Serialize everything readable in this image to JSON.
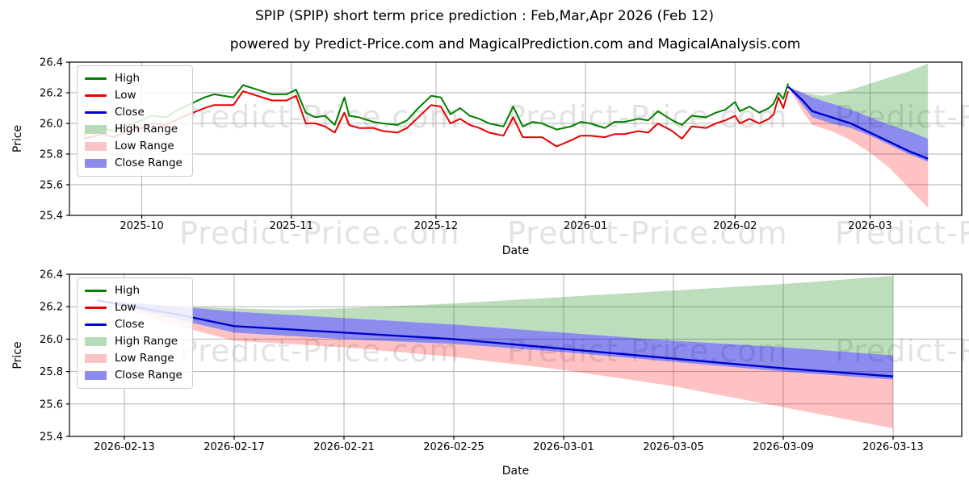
{
  "header": {
    "title": "SPIP (SPIP) short term price prediction : Feb,Mar,Apr 2026 (Feb 12)",
    "subtitle": "powered by Predict-Price.com and MagicalPrediction.com and MagicalAnalysis.com"
  },
  "watermark": {
    "text": "Predict-Price.com"
  },
  "colors": {
    "high": "#008000",
    "low": "#e80000",
    "close": "#0000cd",
    "high_range": "rgba(0,128,0,0.26)",
    "low_range": "rgba(255,0,0,0.24)",
    "close_range": "rgba(0,0,220,0.45)",
    "grid": "#b2b2b2",
    "watermark_gray": "#e2e2e2"
  },
  "legend": [
    {
      "label": "High",
      "type": "line",
      "color": "#008000"
    },
    {
      "label": "Low",
      "type": "line",
      "color": "#e80000"
    },
    {
      "label": "Close",
      "type": "line",
      "color": "#0000cd"
    },
    {
      "label": "High Range",
      "type": "patch",
      "color": "#b7dab7"
    },
    {
      "label": "Low Range",
      "type": "patch",
      "color": "#fbc4c4"
    },
    {
      "label": "Close Range",
      "type": "patch",
      "color": "#8c8cef"
    }
  ],
  "chart_data": [
    {
      "name": "price-history-and-forecast",
      "type": "line",
      "xlabel": "Date",
      "ylabel": "Price",
      "ylim": [
        25.4,
        26.4
      ],
      "yticks": [
        25.4,
        25.6,
        25.8,
        26.0,
        26.2,
        26.4
      ],
      "xlim": [
        "2025-09-16",
        "2026-03-20"
      ],
      "xticks": [
        {
          "date": "2025-10-01",
          "label": "2025-10"
        },
        {
          "date": "2025-11-01",
          "label": "2025-11"
        },
        {
          "date": "2025-12-01",
          "label": "2025-12"
        },
        {
          "date": "2026-01-01",
          "label": "2026-01"
        },
        {
          "date": "2026-02-01",
          "label": "2026-02"
        },
        {
          "date": "2026-03-01",
          "label": "2026-03"
        }
      ],
      "grid": true,
      "legend_position": "upper left",
      "history": {
        "columns": [
          "date",
          "high",
          "low"
        ],
        "rows": [
          [
            "2025-09-19",
            25.93,
            25.9
          ],
          [
            "2025-09-23",
            25.97,
            25.93
          ],
          [
            "2025-09-25",
            25.95,
            25.91
          ],
          [
            "2025-09-29",
            26.0,
            25.96
          ],
          [
            "2025-10-01",
            26.02,
            25.97
          ],
          [
            "2025-10-03",
            26.05,
            26.0
          ],
          [
            "2025-10-06",
            26.04,
            25.99
          ],
          [
            "2025-10-08",
            26.08,
            26.02
          ],
          [
            "2025-10-10",
            26.11,
            26.05
          ],
          [
            "2025-10-14",
            26.17,
            26.1
          ],
          [
            "2025-10-16",
            26.19,
            26.12
          ],
          [
            "2025-10-20",
            26.17,
            26.12
          ],
          [
            "2025-10-22",
            26.25,
            26.21
          ],
          [
            "2025-10-24",
            26.23,
            26.19
          ],
          [
            "2025-10-28",
            26.19,
            26.15
          ],
          [
            "2025-10-31",
            26.19,
            26.15
          ],
          [
            "2025-11-02",
            26.22,
            26.18
          ],
          [
            "2025-11-04",
            26.07,
            26.0
          ],
          [
            "2025-11-06",
            26.04,
            26.0
          ],
          [
            "2025-11-08",
            26.05,
            25.98
          ],
          [
            "2025-11-10",
            25.99,
            25.94
          ],
          [
            "2025-11-12",
            26.17,
            26.07
          ],
          [
            "2025-11-13",
            26.05,
            25.99
          ],
          [
            "2025-11-15",
            26.04,
            25.97
          ],
          [
            "2025-11-18",
            26.01,
            25.97
          ],
          [
            "2025-11-20",
            26.0,
            25.95
          ],
          [
            "2025-11-23",
            25.99,
            25.94
          ],
          [
            "2025-11-25",
            26.02,
            25.97
          ],
          [
            "2025-11-27",
            26.09,
            26.03
          ],
          [
            "2025-11-30",
            26.18,
            26.12
          ],
          [
            "2025-12-02",
            26.17,
            26.11
          ],
          [
            "2025-12-04",
            26.06,
            26.0
          ],
          [
            "2025-12-06",
            26.1,
            26.03
          ],
          [
            "2025-12-08",
            26.05,
            25.99
          ],
          [
            "2025-12-10",
            26.03,
            25.97
          ],
          [
            "2025-12-12",
            26.0,
            25.94
          ],
          [
            "2025-12-15",
            25.98,
            25.92
          ],
          [
            "2025-12-17",
            26.11,
            26.04
          ],
          [
            "2025-12-19",
            25.98,
            25.91
          ],
          [
            "2025-12-21",
            26.01,
            25.91
          ],
          [
            "2025-12-23",
            26.0,
            25.91
          ],
          [
            "2025-12-26",
            25.96,
            25.85
          ],
          [
            "2025-12-29",
            25.98,
            25.89
          ],
          [
            "2025-12-31",
            26.01,
            25.92
          ],
          [
            "2026-01-02",
            26.0,
            25.92
          ],
          [
            "2026-01-05",
            25.97,
            25.91
          ],
          [
            "2026-01-07",
            26.01,
            25.93
          ],
          [
            "2026-01-09",
            26.01,
            25.93
          ],
          [
            "2026-01-12",
            26.03,
            25.95
          ],
          [
            "2026-01-14",
            26.02,
            25.94
          ],
          [
            "2026-01-16",
            26.08,
            26.0
          ],
          [
            "2026-01-19",
            26.02,
            25.95
          ],
          [
            "2026-01-21",
            25.99,
            25.9
          ],
          [
            "2026-01-23",
            26.05,
            25.98
          ],
          [
            "2026-01-26",
            26.04,
            25.97
          ],
          [
            "2026-01-28",
            26.07,
            26.0
          ],
          [
            "2026-01-30",
            26.09,
            26.02
          ],
          [
            "2026-02-01",
            26.14,
            26.05
          ],
          [
            "2026-02-02",
            26.08,
            26.0
          ],
          [
            "2026-02-04",
            26.11,
            26.03
          ],
          [
            "2026-02-06",
            26.07,
            26.0
          ],
          [
            "2026-02-08",
            26.1,
            26.03
          ],
          [
            "2026-02-09",
            26.13,
            26.06
          ],
          [
            "2026-02-10",
            26.2,
            26.17
          ],
          [
            "2026-02-11",
            26.16,
            26.1
          ],
          [
            "2026-02-12",
            26.26,
            26.21
          ]
        ]
      },
      "forecast": {
        "columns": [
          "date",
          "close",
          "close_upper",
          "close_lower",
          "high_upper",
          "low_lower"
        ],
        "rows": [
          [
            "2026-02-12",
            26.24,
            26.24,
            26.24,
            26.24,
            26.24
          ],
          [
            "2026-02-15",
            26.15,
            26.2,
            26.12,
            26.2,
            26.08
          ],
          [
            "2026-02-17",
            26.08,
            26.17,
            26.04,
            26.19,
            25.99
          ],
          [
            "2026-02-19",
            26.06,
            26.15,
            26.02,
            26.18,
            25.97
          ],
          [
            "2026-02-21",
            26.04,
            26.13,
            26.0,
            26.19,
            25.95
          ],
          [
            "2026-02-25",
            26.0,
            26.09,
            25.97,
            26.22,
            25.89
          ],
          [
            "2026-03-01",
            25.94,
            26.04,
            25.92,
            26.26,
            25.81
          ],
          [
            "2026-03-05",
            25.88,
            25.99,
            25.86,
            26.3,
            25.71
          ],
          [
            "2026-03-09",
            25.82,
            25.95,
            25.8,
            26.34,
            25.58
          ],
          [
            "2026-03-13",
            25.77,
            25.9,
            25.75,
            26.39,
            25.45
          ]
        ]
      }
    },
    {
      "name": "forecast-detail",
      "type": "line",
      "xlabel": "Date",
      "ylabel": "Price",
      "ylim": [
        25.4,
        26.4
      ],
      "yticks": [
        25.4,
        25.6,
        25.8,
        26.0,
        26.2,
        26.4
      ],
      "xlim": [
        "2026-02-11",
        "2026-03-15T12:00"
      ],
      "xticks": [
        {
          "date": "2026-02-13",
          "label": "2026-02-13"
        },
        {
          "date": "2026-02-17",
          "label": "2026-02-17"
        },
        {
          "date": "2026-02-21",
          "label": "2026-02-21"
        },
        {
          "date": "2026-02-25",
          "label": "2026-02-25"
        },
        {
          "date": "2026-03-01",
          "label": "2026-03-01"
        },
        {
          "date": "2026-03-05",
          "label": "2026-03-05"
        },
        {
          "date": "2026-03-09",
          "label": "2026-03-09"
        },
        {
          "date": "2026-03-13",
          "label": "2026-03-13"
        }
      ],
      "grid": true,
      "legend_position": "upper left",
      "forecast": {
        "columns": [
          "date",
          "close",
          "close_upper",
          "close_lower",
          "high_upper",
          "low_lower"
        ],
        "rows": [
          [
            "2026-02-12",
            26.24,
            26.24,
            26.24,
            26.24,
            26.24
          ],
          [
            "2026-02-15",
            26.15,
            26.2,
            26.12,
            26.2,
            26.08
          ],
          [
            "2026-02-17",
            26.08,
            26.17,
            26.04,
            26.19,
            25.99
          ],
          [
            "2026-02-19",
            26.06,
            26.15,
            26.02,
            26.18,
            25.97
          ],
          [
            "2026-02-21",
            26.04,
            26.13,
            26.0,
            26.19,
            25.95
          ],
          [
            "2026-02-25",
            26.0,
            26.09,
            25.97,
            26.22,
            25.89
          ],
          [
            "2026-03-01",
            25.94,
            26.04,
            25.92,
            26.26,
            25.81
          ],
          [
            "2026-03-05",
            25.88,
            25.99,
            25.86,
            26.3,
            25.71
          ],
          [
            "2026-03-09",
            25.82,
            25.95,
            25.8,
            26.34,
            25.58
          ],
          [
            "2026-03-13",
            25.77,
            25.9,
            25.75,
            26.39,
            25.45
          ]
        ]
      }
    }
  ]
}
